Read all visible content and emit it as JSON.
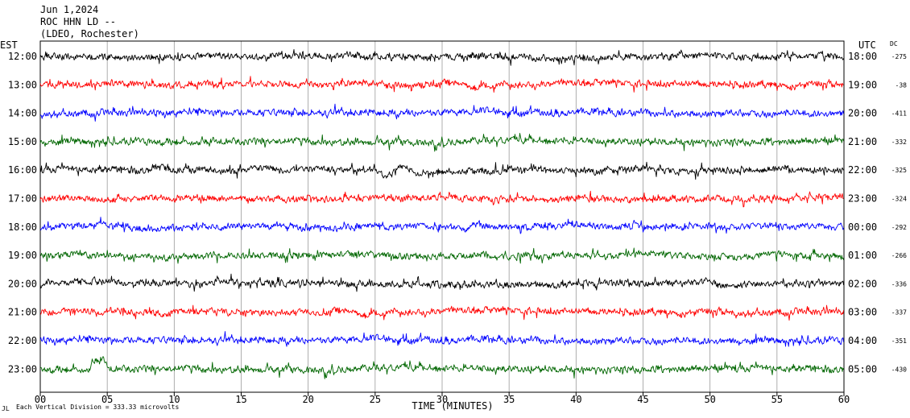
{
  "header": {
    "date": "Jun 1,2024",
    "station": "ROC HHN LD --",
    "network": "(LDEO, Rochester)"
  },
  "chart_data": {
    "type": "line",
    "title": "",
    "xlabel": "TIME (MINUTES)",
    "xlim": [
      0,
      60
    ],
    "xticks": [
      "00",
      "05",
      "10",
      "15",
      "20",
      "25",
      "30",
      "35",
      "40",
      "45",
      "50",
      "55",
      "60"
    ],
    "left_axis_label": "EST",
    "right_axis_label": "UTC",
    "dc_label": "DC",
    "grid": true,
    "footer_mark": "JL",
    "scale_note": "Each Vertical Division =  333.33 microvolts",
    "trace_colors": [
      "#000000",
      "#ff0000",
      "#0000ff",
      "#006600"
    ],
    "rows": [
      {
        "est": "12:00",
        "utc": "18:00",
        "dc": "-275"
      },
      {
        "est": "13:00",
        "utc": "19:00",
        "dc": "-38"
      },
      {
        "est": "14:00",
        "utc": "20:00",
        "dc": "-411"
      },
      {
        "est": "15:00",
        "utc": "21:00",
        "dc": "-332"
      },
      {
        "est": "16:00",
        "utc": "22:00",
        "dc": "-325"
      },
      {
        "est": "17:00",
        "utc": "23:00",
        "dc": "-324"
      },
      {
        "est": "18:00",
        "utc": "00:00",
        "dc": "-292"
      },
      {
        "est": "19:00",
        "utc": "01:00",
        "dc": "-266"
      },
      {
        "est": "20:00",
        "utc": "02:00",
        "dc": "-336"
      },
      {
        "est": "21:00",
        "utc": "03:00",
        "dc": "-337"
      },
      {
        "est": "22:00",
        "utc": "04:00",
        "dc": "-351"
      },
      {
        "est": "23:00",
        "utc": "05:00",
        "dc": "-430"
      }
    ]
  }
}
